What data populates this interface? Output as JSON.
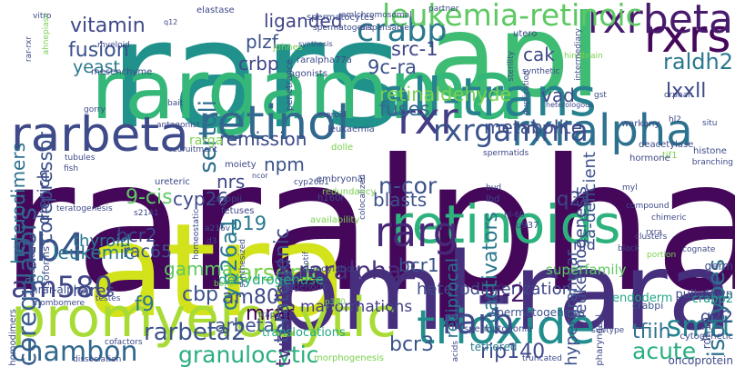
{
  "words": [
    {
      "text": "raralpha",
      "color": "#44075a"
    },
    {
      "text": "rars",
      "color": "#21918c"
    },
    {
      "text": "apl",
      "color": "#3fbc73"
    },
    {
      "text": "atra",
      "color": "#d2e21b"
    },
    {
      "text": "pml-rara",
      "color": "#46307e"
    },
    {
      "text": "rargamma",
      "color": "#35b779"
    },
    {
      "text": "retinoids",
      "color": "#2db27d"
    },
    {
      "text": "promyelocytic",
      "color": "#a8db34"
    },
    {
      "text": "all-trans",
      "color": "#26828e"
    },
    {
      "text": "rarbeta",
      "color": "#3e4a89"
    },
    {
      "text": "retinol",
      "color": "#31688e"
    },
    {
      "text": "rxralpha",
      "color": "#2c728e"
    },
    {
      "text": "trioxide",
      "color": "#228d8d"
    },
    {
      "text": "rxrs",
      "color": "#44075a"
    },
    {
      "text": "rxrbeta",
      "color": "#481b6d"
    },
    {
      "text": "rxr",
      "color": "#433e85"
    },
    {
      "text": "rarg",
      "color": "#482878"
    },
    {
      "text": "nb4",
      "color": "#3b528b"
    },
    {
      "text": "crabp",
      "color": "#2a788e"
    },
    {
      "text": "rxrgamma",
      "color": "#3a548c"
    },
    {
      "text": "leukemia-retinoic",
      "color": "#5ec962"
    },
    {
      "text": "chambon",
      "color": "#31688e"
    },
    {
      "text": "rarb",
      "color": "#3e4a89"
    },
    {
      "text": "smrt",
      "color": "#25848e"
    },
    {
      "text": "am580",
      "color": "#404688"
    },
    {
      "text": "coregulators",
      "color": "#365d8d"
    },
    {
      "text": "arsenic",
      "color": "#7ad151"
    },
    {
      "text": "raralpha2",
      "color": "#472d7b"
    },
    {
      "text": "rarbeta2",
      "color": "#3b528b"
    },
    {
      "text": "granulocytic",
      "color": "#29af7f"
    },
    {
      "text": "two-hybrid",
      "color": "#472d7b"
    },
    {
      "text": "bcr3",
      "color": "#3b528b"
    },
    {
      "text": "tfiih",
      "color": "#2d708e"
    },
    {
      "text": "acute",
      "color": "#29af7f"
    },
    {
      "text": "q22",
      "color": "#3f4788"
    },
    {
      "text": "rip140",
      "color": "#3e4c8a"
    },
    {
      "text": "heterodimerization",
      "color": "#3f4788"
    },
    {
      "text": "mrar",
      "color": "#440154"
    },
    {
      "text": "cbp",
      "color": "#3b528b"
    },
    {
      "text": "f9",
      "color": "#2a768e"
    },
    {
      "text": "am80",
      "color": "#3e4a89"
    },
    {
      "text": "af-2",
      "color": "#481b6d"
    },
    {
      "text": "malformations",
      "color": "#433e85"
    },
    {
      "text": "vitamin",
      "color": "#3e4989"
    },
    {
      "text": "fusion",
      "color": "#3b528b"
    },
    {
      "text": "yeast",
      "color": "#2a788e"
    },
    {
      "text": "liganded",
      "color": "#404688"
    },
    {
      "text": "rarbeta2",
      "color": "#3b528b"
    },
    {
      "text": "heterodimers",
      "color": "#2d708e"
    },
    {
      "text": "corepressor",
      "color": "#3b528b"
    },
    {
      "text": "dierich",
      "color": "#3e4a89"
    },
    {
      "text": "plzf",
      "color": "#3b528b"
    },
    {
      "text": "crbp",
      "color": "#404688"
    },
    {
      "text": "sertoli",
      "color": "#2e6e8e"
    },
    {
      "text": "src-1",
      "color": "#404688"
    },
    {
      "text": "9c-ra",
      "color": "#3b528b"
    },
    {
      "text": "cak",
      "color": "#3f4788"
    },
    {
      "text": "vad",
      "color": "#3e4989"
    },
    {
      "text": "a-deficient",
      "color": "#3b528b"
    },
    {
      "text": "raldh2",
      "color": "#2a788e"
    },
    {
      "text": "lxxll",
      "color": "#3e4a89"
    },
    {
      "text": "retinaldehyde",
      "color": "#7ad151"
    },
    {
      "text": "fuses",
      "color": "#31688e"
    },
    {
      "text": "metabolite",
      "color": "#3e4c8a"
    },
    {
      "text": "n-cor",
      "color": "#3b528b"
    },
    {
      "text": "9-cis",
      "color": "#5ec962"
    },
    {
      "text": "cyp26",
      "color": "#3e4a89"
    },
    {
      "text": "cyp26a1",
      "color": "#2a788e"
    },
    {
      "text": "nrs",
      "color": "#404688"
    },
    {
      "text": "npm",
      "color": "#3b528b"
    },
    {
      "text": "remission",
      "color": "#3e4a89"
    },
    {
      "text": "rarga",
      "color": "#7ad151"
    },
    {
      "text": "teratogenic",
      "color": "#3e4c8a"
    },
    {
      "text": "blasts",
      "color": "#3b528b"
    },
    {
      "text": "reciprocal",
      "color": "#2c728e"
    },
    {
      "text": "coactivators",
      "color": "#2a788e"
    },
    {
      "text": "hypergranular",
      "color": "#3b528b"
    },
    {
      "text": "leukemogenesis",
      "color": "#3e4a89"
    },
    {
      "text": "isotypes",
      "color": "#2c728e"
    },
    {
      "text": "q21",
      "color": "#3f4788"
    },
    {
      "text": "bcr2",
      "color": "#3f4788"
    },
    {
      "text": "thyroid",
      "color": "#2a788e"
    },
    {
      "text": "p19",
      "color": "#2a788e"
    },
    {
      "text": "leukemic",
      "color": "#2a788e"
    },
    {
      "text": "rac65",
      "color": "#3b528b"
    },
    {
      "text": "bcr1",
      "color": "#3b528b"
    },
    {
      "text": "gamma",
      "color": "#5ec962"
    },
    {
      "text": "nid",
      "color": "#3e4989"
    },
    {
      "text": "superfamily",
      "color": "#5ec962"
    },
    {
      "text": "dehydrogenase",
      "color": "#22a884"
    },
    {
      "text": "hrar-alpha",
      "color": "#3e4c8a"
    },
    {
      "text": "ato",
      "color": "#2a788e"
    },
    {
      "text": "rares",
      "color": "#3e4a89"
    },
    {
      "text": "isoforms",
      "color": "#3e4c8a"
    },
    {
      "text": "translocations",
      "color": "#22a884"
    },
    {
      "text": "spermatogenesis",
      "color": "#3b528b"
    },
    {
      "text": "tethered",
      "color": "#2a788e"
    },
    {
      "text": "endoderm",
      "color": "#22a884"
    },
    {
      "text": "crabpi",
      "color": "#3b528b"
    },
    {
      "text": "pull-down",
      "color": "#3e4a89"
    },
    {
      "text": "germ",
      "color": "#3e4a89"
    },
    {
      "text": "crabp2",
      "color": "#1f9e89"
    },
    {
      "text": "rdh10",
      "color": "#3e4a89"
    },
    {
      "text": "cytogenetic",
      "color": "#3e4a89"
    },
    {
      "text": "oncoprotein",
      "color": "#3e4a89"
    },
    {
      "text": "myeloid",
      "color": "#3e4a89"
    },
    {
      "text": "mesenchyme",
      "color": "#3e4a89"
    },
    {
      "text": "q12",
      "color": "#3e4a89"
    },
    {
      "text": "elastase",
      "color": "#3e4a89"
    },
    {
      "text": "johnes",
      "color": "#7ad151"
    },
    {
      "text": "raralpha77a",
      "color": "#3e4a89"
    },
    {
      "text": "penetrance",
      "color": "#3e4a89"
    },
    {
      "text": "agonists",
      "color": "#3e4a89"
    },
    {
      "text": "synthesis",
      "color": "#3e4a89"
    },
    {
      "text": "spermatogenic",
      "color": "#3e4a89"
    },
    {
      "text": "dispensable",
      "color": "#3e4a89"
    },
    {
      "text": "amlchromosomal",
      "color": "#3e4a89"
    },
    {
      "text": "spermatocytes",
      "color": "#3e4a89"
    },
    {
      "text": "partner",
      "color": "#3e4a89"
    },
    {
      "text": "utero",
      "color": "#3e4a89"
    },
    {
      "text": "hindbrain",
      "color": "#7ad151"
    },
    {
      "text": "intermediary",
      "color": "#3e4a89"
    },
    {
      "text": "sterility",
      "color": "#3e4a89"
    },
    {
      "text": "duplication",
      "color": "#3e4a89"
    },
    {
      "text": "synthetic",
      "color": "#3e4a89"
    },
    {
      "text": "orphan",
      "color": "#3e4a89"
    },
    {
      "text": "gst",
      "color": "#3e4a89"
    },
    {
      "text": "heterologous",
      "color": "#3e4a89"
    },
    {
      "text": "steroid",
      "color": "#3e4a89"
    },
    {
      "text": "leukaemia",
      "color": "#3e4a89"
    },
    {
      "text": "antagonist",
      "color": "#3e4a89"
    },
    {
      "text": "bait",
      "color": "#3e4a89"
    },
    {
      "text": "gorry",
      "color": "#3e4a89"
    },
    {
      "text": "warkany",
      "color": "#3e4a89"
    },
    {
      "text": "hl2",
      "color": "#3e4a89"
    },
    {
      "text": "situ",
      "color": "#3e4a89"
    },
    {
      "text": "deacetylase",
      "color": "#3e4a89"
    },
    {
      "text": "histone",
      "color": "#3e4a89"
    },
    {
      "text": "branching",
      "color": "#3e4a89"
    },
    {
      "text": "tif1",
      "color": "#7ad151"
    },
    {
      "text": "hormone",
      "color": "#3e4a89"
    },
    {
      "text": "spermatids",
      "color": "#3e4a89"
    },
    {
      "text": "dolle",
      "color": "#7ad151"
    },
    {
      "text": "recruitment",
      "color": "#3e4a89"
    },
    {
      "text": "tubules",
      "color": "#3e4a89"
    },
    {
      "text": "fish",
      "color": "#3e4a89"
    },
    {
      "text": "moiety",
      "color": "#3e4a89"
    },
    {
      "text": "ncor",
      "color": "#3e4a89"
    },
    {
      "text": "embryonal",
      "color": "#3e4a89"
    },
    {
      "text": "colocalized",
      "color": "#3e4a89"
    },
    {
      "text": "ureteric",
      "color": "#3e4a89"
    },
    {
      "text": "redundancy",
      "color": "#7ad151"
    },
    {
      "text": "cyp26b1",
      "color": "#3e4a89"
    },
    {
      "text": "crabpii",
      "color": "#3e4a89"
    },
    {
      "text": "homeostatic",
      "color": "#3e4a89"
    },
    {
      "text": "s2141",
      "color": "#3e4a89"
    },
    {
      "text": "a216v",
      "color": "#3e4a89"
    },
    {
      "text": "d3",
      "color": "#3e4a89"
    },
    {
      "text": "fetuses",
      "color": "#3e4a89"
    },
    {
      "text": "teratogenesis",
      "color": "#3e4a89"
    },
    {
      "text": "nucleophosmin",
      "color": "#3e4a89"
    },
    {
      "text": "h160r",
      "color": "#3e4a89"
    },
    {
      "text": "bud",
      "color": "#3e4a89"
    },
    {
      "text": "lbd",
      "color": "#3e4a89"
    },
    {
      "text": "hl-60",
      "color": "#3e4a89"
    },
    {
      "text": "u937",
      "color": "#3e4a89"
    },
    {
      "text": "availability",
      "color": "#7ad151"
    },
    {
      "text": "synthesized",
      "color": "#3e4a89"
    },
    {
      "text": "motif",
      "color": "#3e4a89"
    },
    {
      "text": "myl",
      "color": "#3e4a89"
    },
    {
      "text": "compound",
      "color": "#3e4a89"
    },
    {
      "text": "chimeric",
      "color": "#3e4a89"
    },
    {
      "text": "rxra",
      "color": "#3e4a89"
    },
    {
      "text": "clusters",
      "color": "#3e4a89"
    },
    {
      "text": "block",
      "color": "#3e4a89"
    },
    {
      "text": "portion",
      "color": "#7ad151"
    },
    {
      "text": "cognate",
      "color": "#3e4a89"
    },
    {
      "text": "sumoylation",
      "color": "#3e4a89"
    },
    {
      "text": "exogenous",
      "color": "#3e4a89"
    },
    {
      "text": "bone",
      "color": "#7ad151"
    },
    {
      "text": "testes",
      "color": "#3e4a89"
    },
    {
      "text": "rhombomere",
      "color": "#3e4a89"
    },
    {
      "text": "trap220",
      "color": "#3e4a89"
    },
    {
      "text": "p300",
      "color": "#7ad151"
    },
    {
      "text": "ad2",
      "color": "#3e4a89"
    },
    {
      "text": "spermatogonia",
      "color": "#3e4a89"
    },
    {
      "text": "subtype",
      "color": "#3e4a89"
    },
    {
      "text": "pharyngeal",
      "color": "#3e4a89"
    },
    {
      "text": "homodimers",
      "color": "#3e4a89"
    },
    {
      "text": "cofactors",
      "color": "#3e4a89"
    },
    {
      "text": "dissociation",
      "color": "#3e4a89"
    },
    {
      "text": "morphogenesis",
      "color": "#7ad151"
    },
    {
      "text": "truncated",
      "color": "#3e4a89"
    },
    {
      "text": "acids",
      "color": "#3e4a89"
    },
    {
      "text": "rar-rxr",
      "color": "#3e4a89"
    },
    {
      "text": "ahnepiase",
      "color": "#7ad151"
    },
    {
      "text": "vitro",
      "color": "#3e4a89"
    }
  ]
}
